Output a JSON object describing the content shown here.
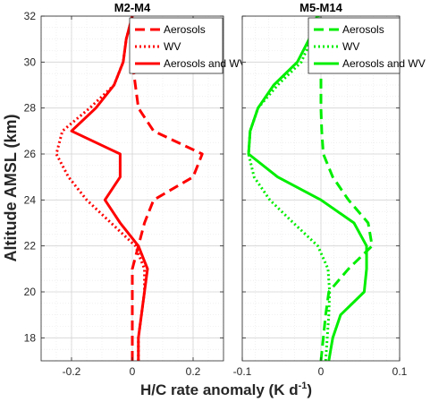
{
  "figure": {
    "ylabel": "Altitude AMSL (km)",
    "xlabel_main": "H/C rate anomaly (K d",
    "xlabel_sup": "-1",
    "xlabel_end": ")"
  },
  "chart_data": [
    {
      "type": "line",
      "title": "M2-M4",
      "xlim": [
        -0.3,
        0.3
      ],
      "ylim": [
        17,
        32
      ],
      "xticks": [
        -0.2,
        0,
        0.2
      ],
      "xtick_labels": [
        "-0.2",
        "0",
        "0.2"
      ],
      "yticks": [
        18,
        20,
        22,
        24,
        26,
        28,
        30,
        32
      ],
      "ytick_labels": [
        "18",
        "20",
        "22",
        "24",
        "26",
        "28",
        "30",
        "32"
      ],
      "grid": true,
      "legend_position": "top-right",
      "color": "#ff0000",
      "series": [
        {
          "name": "Aerosols",
          "style": "dashed",
          "y": [
            17,
            18,
            19,
            20,
            21,
            22,
            23,
            24,
            25,
            26,
            27,
            28,
            29,
            30,
            31,
            32
          ],
          "x": [
            0.0,
            0.0,
            0.0,
            0.0,
            0.0,
            0.02,
            0.04,
            0.07,
            0.2,
            0.23,
            0.07,
            0.02,
            0.01,
            0.0,
            0.01,
            0.01
          ]
        },
        {
          "name": "WV",
          "style": "dotted",
          "y": [
            17,
            18,
            19,
            20,
            21,
            22,
            23,
            24,
            25,
            26,
            27,
            28,
            29,
            30,
            31,
            32
          ],
          "x": [
            0.02,
            0.02,
            0.03,
            0.04,
            0.04,
            0.01,
            -0.07,
            -0.15,
            -0.21,
            -0.25,
            -0.23,
            -0.14,
            -0.06,
            -0.03,
            -0.02,
            0.0
          ]
        },
        {
          "name": "Aerosols and WV",
          "style": "solid",
          "y": [
            17,
            18,
            19,
            20,
            21,
            22,
            23,
            24,
            25,
            26,
            27,
            28,
            29,
            30,
            31,
            32
          ],
          "x": [
            0.02,
            0.02,
            0.03,
            0.04,
            0.05,
            0.02,
            -0.04,
            -0.09,
            -0.04,
            -0.04,
            -0.2,
            -0.12,
            -0.06,
            -0.03,
            -0.02,
            0.0
          ]
        }
      ]
    },
    {
      "type": "line",
      "title": "M5-M14",
      "xlim": [
        -0.1,
        0.1
      ],
      "ylim": [
        17,
        32
      ],
      "xticks": [
        -0.1,
        0,
        0.1
      ],
      "xtick_labels": [
        "-0.1",
        "0",
        "0.1"
      ],
      "yticks": [
        18,
        20,
        22,
        24,
        26,
        28,
        30,
        32
      ],
      "ytick_labels": [],
      "grid": true,
      "legend_position": "top-right",
      "color": "#00ee00",
      "series": [
        {
          "name": "Aerosols",
          "style": "dashed",
          "y": [
            17,
            18,
            19,
            20,
            21,
            22,
            23,
            24,
            25,
            26,
            27,
            28,
            29,
            30,
            31,
            32
          ],
          "x": [
            0.0,
            0.003,
            0.006,
            0.01,
            0.035,
            0.065,
            0.06,
            0.035,
            0.015,
            0.003,
            0.001,
            0.0,
            0.0,
            0.0,
            0.0,
            0.0
          ]
        },
        {
          "name": "WV",
          "style": "dotted",
          "y": [
            17,
            18,
            19,
            20,
            21,
            22,
            23,
            24,
            25,
            26,
            27,
            28,
            29,
            30,
            31,
            32
          ],
          "x": [
            0.006,
            0.008,
            0.01,
            0.011,
            0.009,
            -0.004,
            -0.035,
            -0.065,
            -0.085,
            -0.092,
            -0.09,
            -0.08,
            -0.055,
            -0.025,
            -0.012,
            -0.003
          ]
        },
        {
          "name": "Aerosols and WV",
          "style": "solid",
          "y": [
            17,
            18,
            19,
            20,
            21,
            22,
            23,
            24,
            25,
            26,
            27,
            28,
            29,
            30,
            31,
            32
          ],
          "x": [
            0.01,
            0.015,
            0.025,
            0.055,
            0.058,
            0.058,
            0.042,
            0.0,
            -0.055,
            -0.092,
            -0.09,
            -0.08,
            -0.06,
            -0.03,
            -0.015,
            -0.005
          ]
        }
      ]
    }
  ]
}
